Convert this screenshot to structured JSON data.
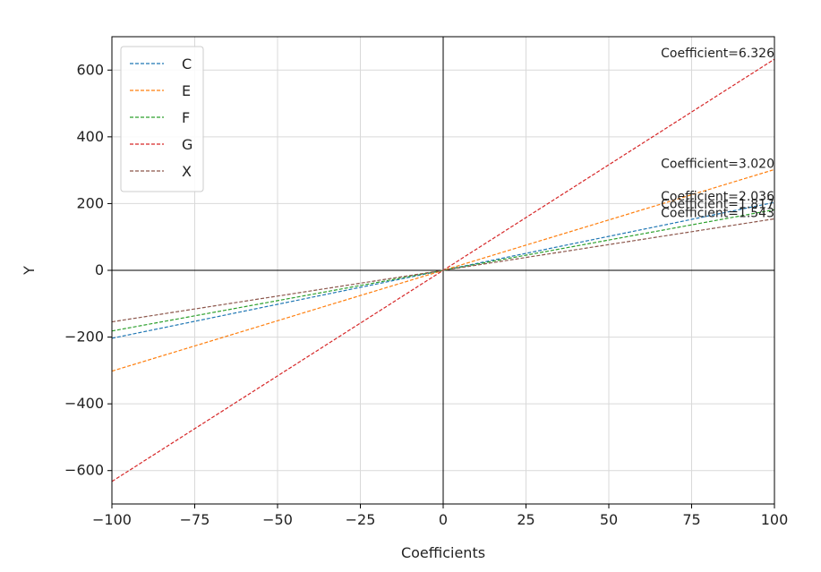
{
  "chart_data": {
    "type": "line",
    "title": "",
    "xlabel": "Coefficients",
    "ylabel": "Y",
    "xlim": [
      -100,
      100
    ],
    "ylim": [
      -700,
      700
    ],
    "xticks": [
      -100,
      -75,
      -50,
      -25,
      0,
      25,
      50,
      75,
      100
    ],
    "xtick_labels": [
      "−100",
      "−75",
      "−50",
      "−25",
      "0",
      "25",
      "50",
      "75",
      "100"
    ],
    "yticks": [
      -600,
      -400,
      -200,
      0,
      200,
      400,
      600
    ],
    "ytick_labels": [
      "−600",
      "−400",
      "−200",
      "0",
      "200",
      "400",
      "600"
    ],
    "grid": true,
    "legend_position": "top-left",
    "x": [
      -100,
      100
    ],
    "series": [
      {
        "name": "C",
        "color": "#1f77b4",
        "coefficient": 2.036,
        "values": [
          -203.6,
          203.6
        ],
        "annotation": "Coefficient=2.036"
      },
      {
        "name": "E",
        "color": "#ff7f0e",
        "coefficient": 3.02,
        "values": [
          -302.0,
          302.0
        ],
        "annotation": "Coefficient=3.020"
      },
      {
        "name": "F",
        "color": "#2ca02c",
        "coefficient": 1.817,
        "values": [
          -181.7,
          181.7
        ],
        "annotation": "Coefficient=1.817"
      },
      {
        "name": "G",
        "color": "#d62728",
        "coefficient": 6.326,
        "values": [
          -632.6,
          632.6
        ],
        "annotation": "Coefficient=6.326"
      },
      {
        "name": "X",
        "color": "#8c564b",
        "coefficient": 1.543,
        "values": [
          -154.3,
          154.3
        ],
        "annotation": "Coefficient=1.543"
      }
    ]
  }
}
